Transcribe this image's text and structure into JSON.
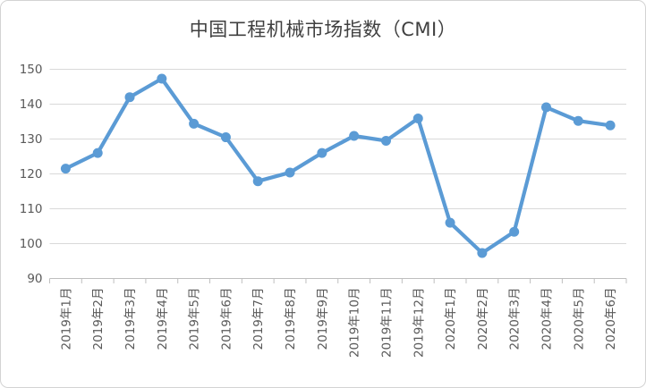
{
  "window": {
    "background_color": "#ffffff",
    "frame_border_color": "#d3d3d3"
  },
  "chart_data": {
    "type": "line",
    "title": "中国工程机械市场指数（CMI）",
    "categories": [
      "2019年1月",
      "2019年2月",
      "2019年3月",
      "2019年4月",
      "2019年5月",
      "2019年6月",
      "2019年7月",
      "2019年8月",
      "2019年9月",
      "2019年10月",
      "2019年11月",
      "2019年12月",
      "2020年1月",
      "2020年2月",
      "2020年3月",
      "2020年4月",
      "2020年5月",
      "2020年6月"
    ],
    "values": [
      121.5,
      126.0,
      142.0,
      147.3,
      134.4,
      130.5,
      117.9,
      120.4,
      126.0,
      130.9,
      129.5,
      135.9,
      106.0,
      97.3,
      103.4,
      139.1,
      135.2,
      133.9
    ],
    "xlabel": "",
    "ylabel": "",
    "ylim": [
      90,
      150
    ],
    "yticks": [
      90,
      100,
      110,
      120,
      130,
      140,
      150
    ],
    "grid": "horizontal",
    "legend": "none",
    "x_labels_rotated_degrees": 90,
    "line_color": "#5b9bd5",
    "marker": "circle",
    "gridline_color": "#d9d9d9",
    "axis_line_color": "#bfbfbf",
    "tick_label_color": "#595959",
    "title_color": "#404040"
  }
}
